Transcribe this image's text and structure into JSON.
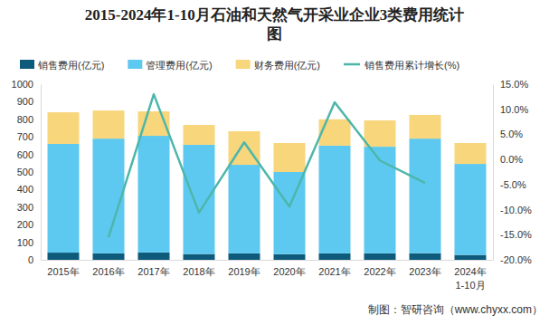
{
  "chart_data": {
    "type": "bar",
    "title": "2015-2024年1-10月石油和天然气开采业企业3类费用统计图",
    "categories": [
      "2015年",
      "2016年",
      "2017年",
      "2018年",
      "2019年",
      "2020年",
      "2021年",
      "2022年",
      "2023年",
      "2024年\n1-10月"
    ],
    "stacked": true,
    "grid": false,
    "legend": "top",
    "series": [
      {
        "name": "销售费用(亿元)",
        "type": "bar",
        "color": "#0e5a7a",
        "values": [
          41,
          37,
          42,
          33,
          37,
          32,
          37,
          37,
          38,
          28
        ]
      },
      {
        "name": "管理费用(亿元)",
        "type": "bar",
        "color": "#5dc9f0",
        "values": [
          619,
          653,
          664,
          622,
          504,
          468,
          613,
          607,
          652,
          518
        ]
      },
      {
        "name": "财务费用(亿元)",
        "type": "bar",
        "color": "#f8d67c",
        "values": [
          180,
          160,
          139,
          113,
          191,
          165,
          150,
          150,
          135,
          119
        ]
      },
      {
        "name": "销售费用累计增长(%)",
        "type": "line",
        "axis": "y2",
        "color": "#4db6ab",
        "marker": "none",
        "line_style": "solid",
        "values": [
          null,
          -15.5,
          13.0,
          -10.6,
          3.4,
          -9.4,
          11.4,
          -0.2,
          -4.7,
          null
        ]
      }
    ],
    "ylim": [
      0,
      1000
    ],
    "yticks": [
      0,
      100,
      200,
      300,
      400,
      500,
      600,
      700,
      800,
      900,
      1000
    ],
    "y2lim": [
      -20,
      15
    ],
    "y2ticks": [
      {
        "value": -20,
        "label": "-20.0%"
      },
      {
        "value": -15,
        "label": "-15.0%"
      },
      {
        "value": -10,
        "label": "-10.0%"
      },
      {
        "value": -5,
        "label": "-5.0%"
      },
      {
        "value": 0,
        "label": "0.0%"
      },
      {
        "value": 5,
        "label": "5.0%"
      },
      {
        "value": 10,
        "label": "10.0%"
      },
      {
        "value": 15,
        "label": "15.0%"
      }
    ],
    "annotations": [
      "制图：智研咨询（www.chyxx.com）"
    ]
  }
}
